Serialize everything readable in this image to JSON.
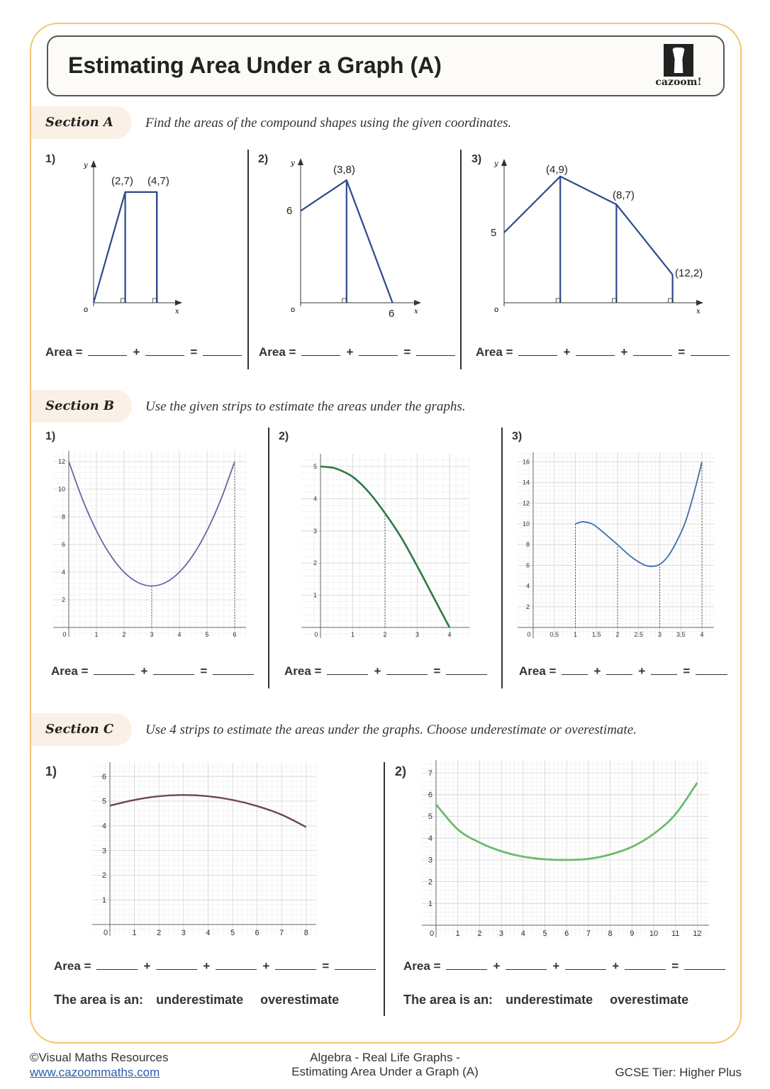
{
  "title": "Estimating Area Under a Graph (A)",
  "logo_text": "cazoom!",
  "colors": {
    "frame": "#f2c66e",
    "tab": "#fbf0e6",
    "shape": "#2c4a8c"
  },
  "sectionA": {
    "label": "Section A",
    "instruction": "Find the areas of the compound shapes using the given coordinates.",
    "questions": [
      {
        "num": "1)",
        "shape": [
          [
            0,
            0
          ],
          [
            2,
            7
          ],
          [
            4,
            7
          ],
          [
            4,
            0
          ]
        ],
        "verticals": [
          2,
          4
        ],
        "labels": [
          "(2,7)",
          "(4,7)"
        ],
        "area_label": "Area =",
        "blanks": 2
      },
      {
        "num": "2)",
        "shape": [
          [
            0,
            6
          ],
          [
            3,
            8
          ],
          [
            6,
            0
          ]
        ],
        "verticals": [
          3
        ],
        "labels": [
          "6",
          "(3,8)",
          "6"
        ],
        "area_label": "Area =",
        "blanks": 2
      },
      {
        "num": "3)",
        "shape": [
          [
            0,
            5
          ],
          [
            4,
            9
          ],
          [
            8,
            7
          ],
          [
            12,
            2
          ]
        ],
        "verticals": [
          4,
          8,
          12
        ],
        "labels": [
          "5",
          "(4,9)",
          "(8,7)",
          "(12,2)"
        ],
        "area_label": "Area =",
        "blanks": 3
      }
    ],
    "axis": {
      "x": "x",
      "y": "y",
      "origin": "o"
    }
  },
  "sectionB": {
    "label": "Section B",
    "instruction": "Use the given strips to estimate the areas under the graphs.",
    "questions": [
      {
        "num": "1)",
        "area_label": "Area =",
        "blanks": 2
      },
      {
        "num": "2)",
        "area_label": "Area =",
        "blanks": 2
      },
      {
        "num": "3)",
        "area_label": "Area =",
        "blanks": 3
      }
    ]
  },
  "sectionC": {
    "label": "Section C",
    "instruction": "Use 4 strips to estimate the areas under the graphs. Choose underestimate or overestimate.",
    "questions": [
      {
        "num": "1)",
        "area_label": "Area =",
        "blanks": 4,
        "choice_label": "The area is an:",
        "options": [
          "underestimate",
          "overestimate"
        ]
      },
      {
        "num": "2)",
        "area_label": "Area =",
        "blanks": 4,
        "choice_label": "The area is an:",
        "options": [
          "underestimate",
          "overestimate"
        ]
      }
    ]
  },
  "chart_data": [
    {
      "id": "B1",
      "type": "line",
      "color": "#6b63a8",
      "xticks": [
        "0",
        "1",
        "2",
        "3",
        "4",
        "5",
        "6"
      ],
      "yticks": [
        "2",
        "4",
        "6",
        "8",
        "10",
        "12"
      ],
      "xlim": [
        0,
        6
      ],
      "ylim": [
        0,
        12
      ],
      "grid": true,
      "strips": [
        3,
        6
      ],
      "points": [
        [
          0,
          12
        ],
        [
          0.5,
          9.25
        ],
        [
          1,
          7
        ],
        [
          1.5,
          5.25
        ],
        [
          2,
          4
        ],
        [
          2.5,
          3.25
        ],
        [
          3,
          3
        ],
        [
          3.5,
          3.25
        ],
        [
          4,
          4
        ],
        [
          4.5,
          5.25
        ],
        [
          5,
          7
        ],
        [
          5.5,
          9.25
        ],
        [
          6,
          12
        ]
      ]
    },
    {
      "id": "B2",
      "type": "line",
      "color": "#2a7a45",
      "xticks": [
        "0",
        "1",
        "2",
        "3",
        "4"
      ],
      "yticks": [
        "1",
        "2",
        "3",
        "4",
        "5"
      ],
      "xlim": [
        0,
        4
      ],
      "ylim": [
        0,
        5
      ],
      "grid": true,
      "strips": [
        2
      ],
      "points": [
        [
          0,
          5
        ],
        [
          0.25,
          4.98
        ],
        [
          0.5,
          4.93
        ],
        [
          1,
          4.68
        ],
        [
          1.5,
          4.2
        ],
        [
          2,
          3.55
        ],
        [
          2.5,
          2.8
        ],
        [
          3,
          1.9
        ],
        [
          3.5,
          0.95
        ],
        [
          4,
          0
        ]
      ]
    },
    {
      "id": "B3",
      "type": "line",
      "color": "#3e6fa8",
      "xticks": [
        "0",
        "0.5",
        "1",
        "1.5",
        "2",
        "2.5",
        "3",
        "3.5",
        "4"
      ],
      "yticks": [
        "2",
        "4",
        "6",
        "8",
        "10",
        "12",
        "14",
        "16"
      ],
      "xlim": [
        0,
        4
      ],
      "ylim": [
        0,
        16
      ],
      "grid": true,
      "strips": [
        1,
        2,
        3,
        4
      ],
      "points": [
        [
          1,
          10
        ],
        [
          1.1,
          10.15
        ],
        [
          1.2,
          10.2
        ],
        [
          1.4,
          10
        ],
        [
          1.6,
          9.4
        ],
        [
          2,
          8
        ],
        [
          2.3,
          6.9
        ],
        [
          2.6,
          6.1
        ],
        [
          2.8,
          5.9
        ],
        [
          3,
          6.1
        ],
        [
          3.2,
          6.9
        ],
        [
          3.4,
          8.3
        ],
        [
          3.6,
          10.1
        ],
        [
          3.8,
          12.8
        ],
        [
          4,
          16
        ]
      ]
    },
    {
      "id": "C1",
      "type": "line",
      "color": "#6e4650",
      "xticks": [
        "0",
        "1",
        "2",
        "3",
        "4",
        "5",
        "6",
        "7",
        "8"
      ],
      "yticks": [
        "1",
        "2",
        "3",
        "4",
        "5",
        "6"
      ],
      "xlim": [
        0,
        8
      ],
      "ylim": [
        0,
        6
      ],
      "grid": true,
      "strips": [],
      "points": [
        [
          0,
          4.82
        ],
        [
          1,
          5.05
        ],
        [
          2,
          5.2
        ],
        [
          3,
          5.25
        ],
        [
          4,
          5.2
        ],
        [
          5,
          5.05
        ],
        [
          6,
          4.8
        ],
        [
          7,
          4.45
        ],
        [
          8,
          3.95
        ]
      ]
    },
    {
      "id": "C2",
      "type": "line",
      "color": "#6cba6e",
      "xticks": [
        "0",
        "1",
        "2",
        "3",
        "4",
        "5",
        "6",
        "7",
        "8",
        "9",
        "10",
        "11",
        "12"
      ],
      "yticks": [
        "1",
        "2",
        "3",
        "4",
        "5",
        "6",
        "7"
      ],
      "xlim": [
        0,
        12
      ],
      "ylim": [
        0,
        7
      ],
      "grid": true,
      "strips": [],
      "points": [
        [
          0,
          5.55
        ],
        [
          1,
          4.4
        ],
        [
          2,
          3.8
        ],
        [
          3,
          3.4
        ],
        [
          4,
          3.15
        ],
        [
          5,
          3.03
        ],
        [
          6,
          3
        ],
        [
          7,
          3.05
        ],
        [
          8,
          3.25
        ],
        [
          9,
          3.6
        ],
        [
          10,
          4.2
        ],
        [
          11,
          5.1
        ],
        [
          12,
          6.55
        ]
      ]
    }
  ],
  "footer": {
    "copyright": "©Visual Maths Resources",
    "website": "www.cazoommaths.com",
    "topic_line1": "Algebra - Real Life Graphs -",
    "topic_line2": "Estimating Area Under a Graph (A)",
    "tier": "GCSE Tier: Higher Plus"
  }
}
